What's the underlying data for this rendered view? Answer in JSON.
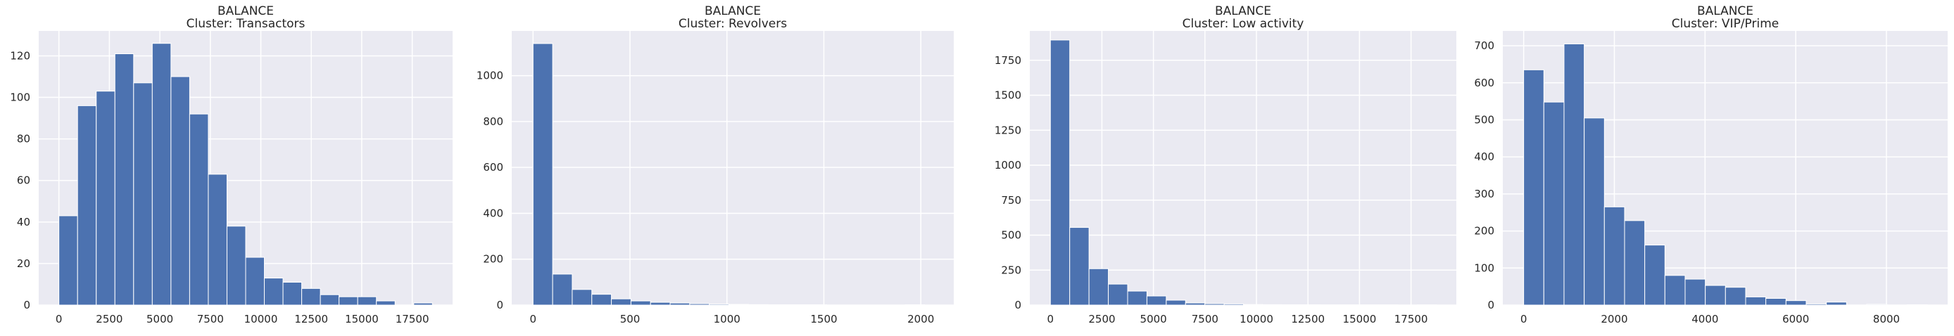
{
  "chart_data": [
    {
      "type": "bar",
      "title": "BALANCE",
      "subtitle": "Cluster: Transactors",
      "xlabel": "",
      "ylabel": "",
      "grid": true,
      "bar_color": "#4c72b0",
      "background": "#eaeaf2",
      "xlim": [
        -1000,
        19500
      ],
      "ylim": [
        0,
        132
      ],
      "xticks": [
        0,
        2500,
        5000,
        7500,
        10000,
        12500,
        15000,
        17500
      ],
      "yticks": [
        0,
        20,
        40,
        60,
        80,
        100,
        120
      ],
      "bin_start": 0,
      "bin_width": 925,
      "values": [
        43,
        96,
        103,
        121,
        107,
        126,
        110,
        92,
        63,
        38,
        23,
        13,
        11,
        8,
        5,
        4,
        4,
        2,
        0,
        1
      ]
    },
    {
      "type": "bar",
      "title": "BALANCE",
      "subtitle": "Cluster: Revolvers",
      "xlabel": "",
      "ylabel": "",
      "grid": true,
      "bar_color": "#4c72b0",
      "background": "#eaeaf2",
      "xlim": [
        -110,
        2170
      ],
      "ylim": [
        0,
        1195
      ],
      "xticks": [
        0,
        500,
        1000,
        1500,
        2000
      ],
      "yticks": [
        0,
        200,
        400,
        600,
        800,
        1000
      ],
      "bin_start": 0,
      "bin_width": 101,
      "values": [
        1140,
        135,
        68,
        47,
        27,
        18,
        12,
        9,
        6,
        4,
        3,
        2,
        1,
        1,
        1,
        0,
        0,
        0,
        0,
        1
      ]
    },
    {
      "type": "bar",
      "title": "BALANCE",
      "subtitle": "Cluster: Low activity",
      "xlabel": "",
      "ylabel": "",
      "grid": true,
      "bar_color": "#4c72b0",
      "background": "#eaeaf2",
      "xlim": [
        -1000,
        19700
      ],
      "ylim": [
        0,
        1960
      ],
      "xticks": [
        0,
        2500,
        5000,
        7500,
        10000,
        12500,
        15000,
        17500
      ],
      "yticks": [
        0,
        250,
        500,
        750,
        1000,
        1250,
        1500,
        1750
      ],
      "bin_start": 0,
      "bin_width": 937,
      "values": [
        1895,
        555,
        260,
        150,
        100,
        65,
        35,
        15,
        10,
        8,
        4,
        3,
        2,
        2,
        1,
        1,
        1,
        1,
        0,
        1
      ]
    },
    {
      "type": "bar",
      "title": "BALANCE",
      "subtitle": "Cluster: VIP/Prime",
      "xlabel": "",
      "ylabel": "",
      "grid": true,
      "bar_color": "#4c72b0",
      "background": "#eaeaf2",
      "xlim": [
        -460,
        9350
      ],
      "ylim": [
        0,
        740
      ],
      "xticks": [
        0,
        2000,
        4000,
        6000,
        8000
      ],
      "yticks": [
        0,
        100,
        200,
        300,
        400,
        500,
        600,
        700
      ],
      "bin_start": 0,
      "bin_width": 445,
      "values": [
        635,
        548,
        705,
        505,
        265,
        228,
        162,
        80,
        70,
        53,
        48,
        22,
        18,
        12,
        3,
        8,
        0,
        2,
        0,
        1
      ]
    }
  ]
}
